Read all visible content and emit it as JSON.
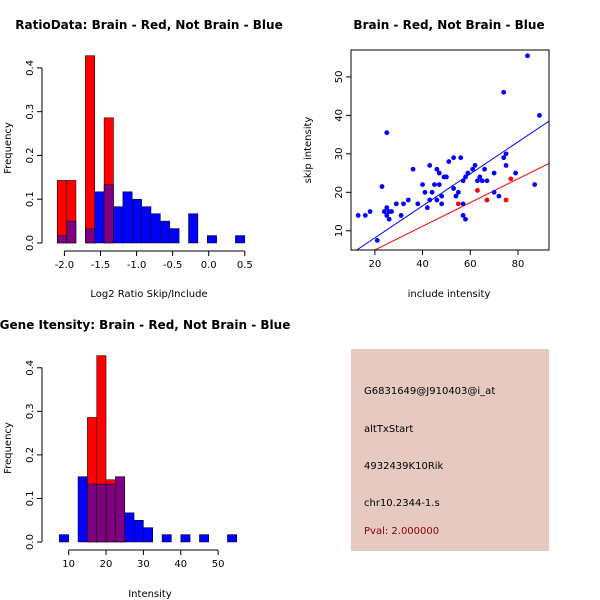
{
  "colors": {
    "red": "#ff0000",
    "blue": "#0000ff",
    "purple": "#7f007f",
    "panel": "#e6c9c1",
    "pval": "#8b0000"
  },
  "chart_data": [
    {
      "type": "bar",
      "title": "RatioData: Brain - Red, Not Brain - Blue",
      "xlabel": "Log2 Ratio Skip/Include",
      "ylabel": "Frequency",
      "xlim": [
        -2.2,
        0.6
      ],
      "ylim": [
        0,
        0.45
      ],
      "xticks": [
        -2.0,
        -1.5,
        -1.0,
        -0.5,
        0.0,
        0.5
      ],
      "xtick_labels": [
        "-2.0",
        "-1.5",
        "-1.0",
        "-0.5",
        "0.0",
        "0.5"
      ],
      "yticks": [
        0.0,
        0.1,
        0.2,
        0.3,
        0.4
      ],
      "ytick_labels": [
        "0.0",
        "0.1",
        "0.2",
        "0.3",
        "0.4"
      ],
      "bin_width": 0.13,
      "bin_starts": [
        -2.1,
        -1.97,
        -1.84,
        -1.71,
        -1.58,
        -1.45,
        -1.32,
        -1.19,
        -1.06,
        -0.93,
        -0.8,
        -0.67,
        -0.54,
        -0.41,
        -0.28,
        -0.15,
        -0.02,
        0.11,
        0.24,
        0.37
      ],
      "series": [
        {
          "name": "Brain",
          "color": "red",
          "values": [
            0.143,
            0.143,
            0,
            0.428,
            0,
            0.286,
            0,
            0,
            0,
            0,
            0,
            0,
            0,
            0,
            0,
            0,
            0,
            0,
            0,
            0
          ]
        },
        {
          "name": "Not Brain",
          "color": "blue",
          "values": [
            0.017,
            0.05,
            0,
            0.033,
            0.117,
            0.133,
            0.083,
            0.117,
            0.1,
            0.083,
            0.067,
            0.05,
            0.033,
            0,
            0.067,
            0,
            0.017,
            0,
            0,
            0.017
          ]
        }
      ]
    },
    {
      "type": "scatter",
      "title": "Brain - Red, Not Brain - Blue",
      "xlabel": "include intensity",
      "ylabel": "skip intensity",
      "xlim": [
        10,
        93
      ],
      "ylim": [
        5,
        57
      ],
      "xticks": [
        20,
        40,
        60,
        80
      ],
      "xtick_labels": [
        "20",
        "40",
        "60",
        "80"
      ],
      "yticks": [
        10,
        20,
        30,
        40,
        50
      ],
      "ytick_labels": [
        "10",
        "20",
        "30",
        "40",
        "50"
      ],
      "series": [
        {
          "name": "Not Brain",
          "color": "blue",
          "points": [
            [
              13,
              14
            ],
            [
              16,
              14
            ],
            [
              18,
              15
            ],
            [
              21,
              7.5
            ],
            [
              23,
              21.5
            ],
            [
              24,
              15
            ],
            [
              25,
              14
            ],
            [
              25,
              16
            ],
            [
              25,
              35.5
            ],
            [
              26,
              13
            ],
            [
              26,
              15
            ],
            [
              27,
              15
            ],
            [
              29,
              17
            ],
            [
              31,
              14
            ],
            [
              32,
              17
            ],
            [
              34,
              18
            ],
            [
              36,
              26
            ],
            [
              38,
              17
            ],
            [
              40,
              22
            ],
            [
              41,
              20
            ],
            [
              42,
              16
            ],
            [
              43,
              18
            ],
            [
              43,
              27
            ],
            [
              44,
              20
            ],
            [
              45,
              22
            ],
            [
              46,
              18
            ],
            [
              46,
              26
            ],
            [
              47,
              22
            ],
            [
              47,
              25
            ],
            [
              48,
              17
            ],
            [
              48,
              19
            ],
            [
              49,
              24
            ],
            [
              50,
              24
            ],
            [
              51,
              28
            ],
            [
              53,
              21
            ],
            [
              53,
              29
            ],
            [
              54,
              19
            ],
            [
              55,
              20
            ],
            [
              56,
              29
            ],
            [
              57,
              14
            ],
            [
              57,
              17
            ],
            [
              57,
              23
            ],
            [
              58,
              13
            ],
            [
              58,
              24
            ],
            [
              59,
              25
            ],
            [
              61,
              26
            ],
            [
              62,
              27
            ],
            [
              63,
              23
            ],
            [
              64,
              24
            ],
            [
              65,
              23
            ],
            [
              66,
              26
            ],
            [
              67,
              23
            ],
            [
              70,
              20
            ],
            [
              70,
              25
            ],
            [
              72,
              19
            ],
            [
              74,
              29
            ],
            [
              74,
              46
            ],
            [
              75,
              30
            ],
            [
              75,
              27
            ],
            [
              79,
              25
            ],
            [
              84,
              55.5
            ],
            [
              87,
              22
            ],
            [
              89,
              40
            ]
          ]
        },
        {
          "name": "Brain",
          "color": "red",
          "points": [
            [
              55,
              17
            ],
            [
              63,
              20.5
            ],
            [
              67,
              18
            ],
            [
              75,
              18
            ],
            [
              77,
              23.5
            ]
          ]
        }
      ],
      "lines": [
        {
          "name": "Not Brain fit",
          "color": "blue",
          "points": [
            [
              10,
              4
            ],
            [
              93,
              38.5
            ]
          ]
        },
        {
          "name": "Brain fit",
          "color": "red",
          "points": [
            [
              20,
              5
            ],
            [
              93,
              27.5
            ]
          ]
        }
      ]
    },
    {
      "type": "bar",
      "title": "Gene Itensity: Brain - Red, Not Brain - Blue",
      "xlabel": "Intensity",
      "ylabel": "Frequency",
      "xlim": [
        5,
        58
      ],
      "ylim": [
        0,
        0.45
      ],
      "xticks": [
        10,
        20,
        30,
        40,
        50
      ],
      "xtick_labels": [
        "10",
        "20",
        "30",
        "40",
        "50"
      ],
      "yticks": [
        0.0,
        0.1,
        0.2,
        0.3,
        0.4
      ],
      "ytick_labels": [
        "0.0",
        "0.1",
        "0.2",
        "0.3",
        "0.4"
      ],
      "bin_width": 2.5,
      "bin_starts": [
        7.5,
        10,
        12.5,
        15,
        17.5,
        20,
        22.5,
        25,
        27.5,
        30,
        32.5,
        35,
        37.5,
        40,
        42.5,
        45,
        47.5,
        50,
        52.5,
        55
      ],
      "series": [
        {
          "name": "Brain",
          "color": "red",
          "values": [
            0,
            0,
            0,
            0.286,
            0.428,
            0.143,
            0.143,
            0,
            0,
            0,
            0,
            0,
            0,
            0,
            0,
            0,
            0,
            0,
            0,
            0
          ]
        },
        {
          "name": "Not Brain",
          "color": "blue",
          "values": [
            0.017,
            0,
            0.15,
            0.133,
            0.133,
            0.133,
            0.15,
            0.067,
            0.05,
            0.033,
            0,
            0.017,
            0,
            0.017,
            0,
            0.017,
            0,
            0,
            0.017,
            0
          ]
        }
      ]
    }
  ],
  "info": {
    "probe_id": "G6831649@J910403@i_at",
    "event_type": "altTxStart",
    "gene": "4932439K10Rik",
    "location": "chr10.2344-1.s",
    "pval": "Pval: 2.000000"
  }
}
